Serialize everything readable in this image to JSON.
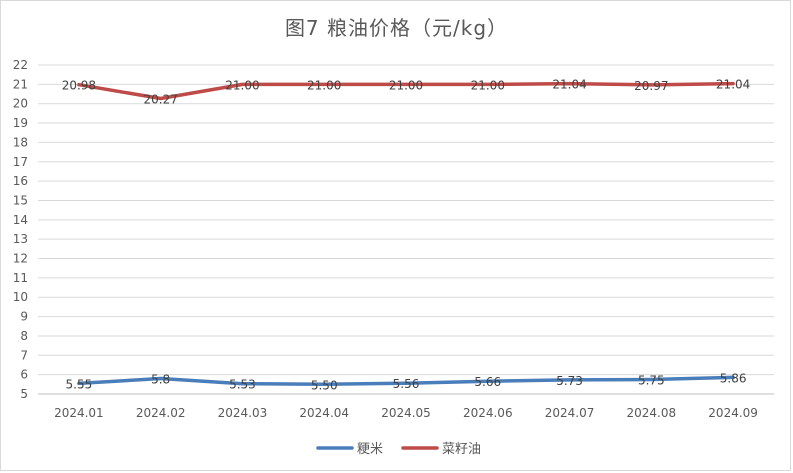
{
  "chart_data": {
    "type": "line",
    "title": "图7 粮油价格（元/kg）",
    "categories": [
      "2024.01",
      "2024.02",
      "2024.03",
      "2024.04",
      "2024.05",
      "2024.06",
      "2024.07",
      "2024.08",
      "2024.09"
    ],
    "series": [
      {
        "name": "粳米",
        "color": "#4a7ebb",
        "values": [
          5.55,
          5.8,
          5.53,
          5.5,
          5.56,
          5.66,
          5.73,
          5.75,
          5.86
        ],
        "labels": [
          "5.55",
          "5.8",
          "5.53",
          "5.50",
          "5.56",
          "5.66",
          "5.73",
          "5.75",
          "5.86"
        ]
      },
      {
        "name": "菜籽油",
        "color": "#be4b48",
        "values": [
          20.98,
          20.27,
          21.0,
          21.0,
          21.0,
          21.0,
          21.04,
          20.97,
          21.04
        ],
        "labels": [
          "20.98",
          "20.27",
          "21.00",
          "21.00",
          "21.00",
          "21.00",
          "21.04",
          "20.97",
          "21.04"
        ]
      }
    ],
    "ylim": [
      5,
      22
    ],
    "yticks": [
      5,
      6,
      7,
      8,
      9,
      10,
      11,
      12,
      13,
      14,
      15,
      16,
      17,
      18,
      19,
      20,
      21,
      22
    ],
    "xlabel": "",
    "ylabel": "",
    "grid": true,
    "legend": "bottom-center"
  }
}
